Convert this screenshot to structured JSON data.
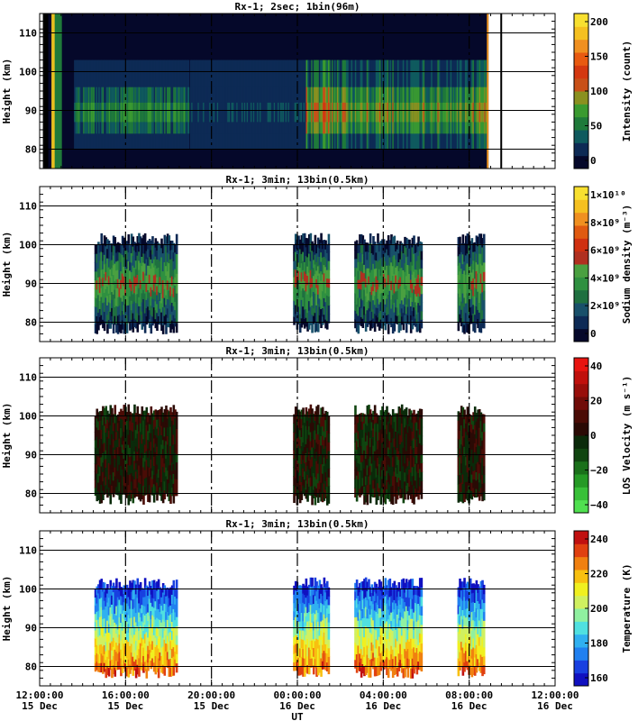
{
  "chart_data": [
    {
      "type": "heatmap",
      "title": "Rx-1;  2sec; 1bin(96m)",
      "ylabel": "Height (km)",
      "ylim": [
        75,
        115
      ],
      "yticks": [
        80,
        90,
        100,
        110
      ],
      "colorbar": {
        "label": "Intensity (count)",
        "ticks": [
          "0",
          "50",
          "100",
          "150",
          "200"
        ],
        "colors": [
          "#05082a",
          "#0d2a55",
          "#0f5a5e",
          "#1f7a3a",
          "#3a9a30",
          "#8a9020",
          "#c85018",
          "#d43810",
          "#e85a10",
          "#f09020",
          "#f5c020",
          "#f8e030"
        ]
      }
    },
    {
      "type": "heatmap",
      "title": "Rx-1; 3min; 13bin(0.5km)",
      "ylabel": "Height (km)",
      "ylim": [
        75,
        115
      ],
      "yticks": [
        80,
        90,
        100,
        110
      ],
      "colorbar": {
        "label": "Sodium density (m⁻³)",
        "ticks": [
          "0",
          "2×10⁹",
          "4×10⁹",
          "6×10⁹",
          "8×10⁹",
          "1×10¹⁰"
        ],
        "colors": [
          "#05082a",
          "#0d2a55",
          "#18506a",
          "#1f7040",
          "#2f9040",
          "#4aa040",
          "#b03020",
          "#d03010",
          "#e05a10",
          "#f09020",
          "#f5c020",
          "#f8e030"
        ]
      }
    },
    {
      "type": "heatmap",
      "title": "Rx-1; 3min; 13bin(0.5km)",
      "ylabel": "Height (km)",
      "ylim": [
        75,
        115
      ],
      "yticks": [
        80,
        90,
        100,
        110
      ],
      "colorbar": {
        "label": "LOS Velocity (m s⁻¹)",
        "ticks": [
          "−40",
          "−20",
          "0",
          "20",
          "40"
        ],
        "colors": [
          "#50e050",
          "#38c038",
          "#259a25",
          "#1a701a",
          "#104510",
          "#0a2a0a",
          "#2a0a05",
          "#4a0c06",
          "#700c08",
          "#980e0a",
          "#c0100c",
          "#e81410"
        ]
      }
    },
    {
      "type": "heatmap",
      "title": "Rx-1; 3min; 13bin(0.5km)",
      "ylabel": "Height (km)",
      "ylim": [
        75,
        115
      ],
      "yticks": [
        80,
        90,
        100,
        110
      ],
      "xlabel": "UT",
      "xticks": [
        [
          "12:00:00",
          "15 Dec"
        ],
        [
          "16:00:00",
          "15 Dec"
        ],
        [
          "20:00:00",
          "15 Dec"
        ],
        [
          "00:00:00",
          "16 Dec"
        ],
        [
          "04:00:00",
          "16 Dec"
        ],
        [
          "08:00:00",
          "16 Dec"
        ],
        [
          "12:00:00",
          "16 Dec"
        ]
      ],
      "colorbar": {
        "label": "Temperature (K)",
        "ticks": [
          "160",
          "180",
          "200",
          "220",
          "240"
        ],
        "colors": [
          "#1010c0",
          "#1840e0",
          "#2080f0",
          "#30b0f0",
          "#50e0e0",
          "#90f0a0",
          "#d0f060",
          "#f0f020",
          "#f8c010",
          "#f08010",
          "#e04010",
          "#c01010"
        ]
      }
    }
  ]
}
